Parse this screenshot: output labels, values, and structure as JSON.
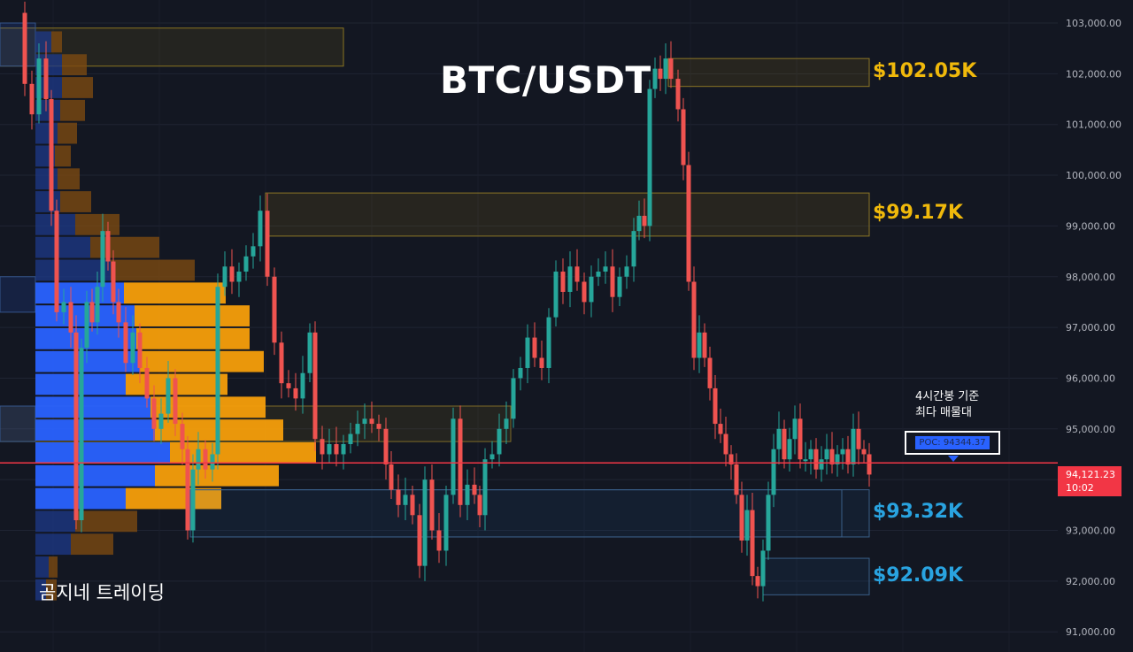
{
  "chart_data": {
    "type": "candlestick",
    "title": "BTC/USDT",
    "watermark": "곰지네 트레이딩",
    "y_axis": {
      "ticks": [
        103000,
        102000,
        101000,
        100000,
        99000,
        98000,
        97000,
        96000,
        95000,
        94000,
        93000,
        92000,
        91000
      ],
      "tick_labels": [
        "103,000.00",
        "102,000.00",
        "101,000.00",
        "100,000.00",
        "99,000.00",
        "98,000.00",
        "97,000.00",
        "96,000.00",
        "95,000.00",
        "94,000.00",
        "93,000.00",
        "92,000.00",
        "91,000.00"
      ],
      "range": [
        90900,
        103400
      ]
    },
    "current_price": {
      "value": 94121.23,
      "label": "94,121.23",
      "countdown": "10:02"
    },
    "poc": {
      "value": 94344.37,
      "label": "POC: 94344.37",
      "note_line1": "4시간봉 기준",
      "note_line2": "최다 매물대"
    },
    "levels": [
      {
        "label": "$102.05K",
        "top": 102300,
        "bottom": 101750,
        "color": "#f0b90b"
      },
      {
        "label": "$99.17K",
        "top": 99650,
        "bottom": 98800,
        "color": "#f0b90b"
      },
      {
        "label": "$93.32K",
        "top": 93800,
        "bottom": 92870,
        "color": "#29a3e0"
      },
      {
        "label": "$92.09K",
        "top": 92450,
        "bottom": 91730,
        "color": "#29a3e0"
      }
    ],
    "left_zones": [
      {
        "top": 102900,
        "bottom": 102150,
        "style": "yellow"
      },
      {
        "top": 95450,
        "bottom": 94750,
        "style": "yellow"
      }
    ],
    "volume_profile_colors": {
      "up": "#2962ff",
      "down": "#f59e0b"
    },
    "candle_colors": {
      "up": "#26a69a",
      "down": "#ef5350"
    }
  }
}
